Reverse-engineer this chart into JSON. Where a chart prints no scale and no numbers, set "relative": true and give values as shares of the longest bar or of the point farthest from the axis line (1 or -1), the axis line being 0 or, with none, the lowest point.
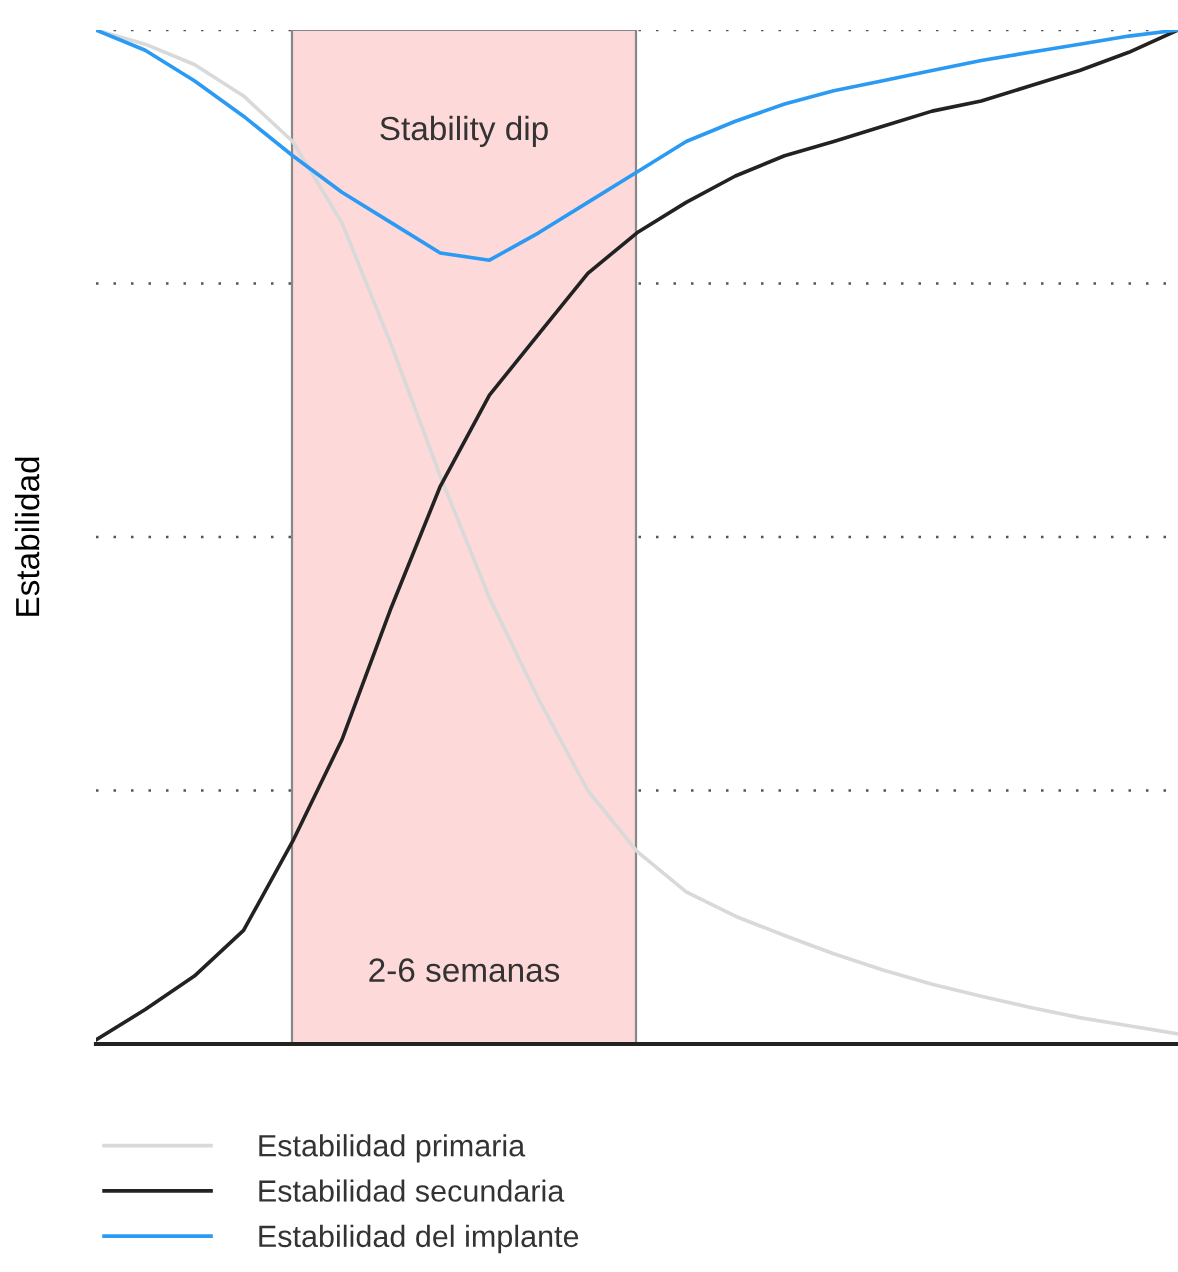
{
  "chart_data": {
    "type": "line",
    "relative": true,
    "ylabel": "Estabilidad",
    "categories": [
      null,
      null,
      null,
      null,
      null,
      null,
      null,
      null,
      null,
      null,
      null,
      null,
      null,
      null,
      null,
      null,
      null,
      null,
      null,
      null,
      null,
      null,
      null
    ],
    "series": [
      {
        "name": "Estabilidad primaria",
        "color": "#d9d9d9",
        "values": [
          1.0,
          0.986,
          0.966,
          0.935,
          0.89,
          0.81,
          0.69,
          0.56,
          0.44,
          0.34,
          0.25,
          0.19,
          0.15,
          0.126,
          0.107,
          0.089,
          0.073,
          0.059,
          0.047,
          0.036,
          0.026,
          0.018,
          0.01
        ]
      },
      {
        "name": "Estabilidad secundaria",
        "color": "#222222",
        "values": [
          0.004,
          0.034,
          0.067,
          0.112,
          0.2,
          0.3,
          0.43,
          0.55,
          0.64,
          0.7,
          0.76,
          0.8,
          0.83,
          0.856,
          0.876,
          0.89,
          0.905,
          0.92,
          0.93,
          0.945,
          0.96,
          0.978,
          1.0
        ]
      },
      {
        "name": "Estabilidad del implante",
        "color": "#2b9af3",
        "values": [
          1.0,
          0.98,
          0.95,
          0.915,
          0.876,
          0.84,
          0.81,
          0.78,
          0.773,
          0.8,
          0.83,
          0.86,
          0.89,
          0.91,
          0.927,
          0.94,
          0.95,
          0.96,
          0.97,
          0.978,
          0.986,
          0.994,
          1.0
        ]
      }
    ],
    "annotations": [
      "Stability dip",
      "2-6 semanas"
    ],
    "grid": "y",
    "legend": "bottom",
    "marker": "none",
    "line_style": "solid"
  }
}
